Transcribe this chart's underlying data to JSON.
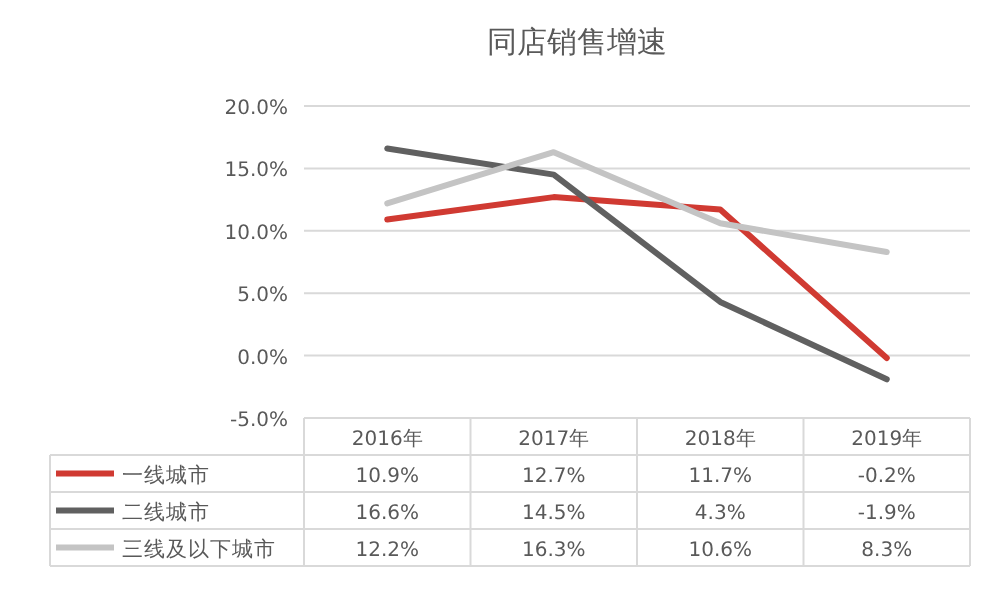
{
  "chart_data": {
    "type": "line",
    "title": "同店销售增速",
    "categories": [
      "2016年",
      "2017年",
      "2018年",
      "2019年"
    ],
    "ylim": [
      -5,
      20
    ],
    "yticks": [
      {
        "value": -5,
        "label": "-5.0%"
      },
      {
        "value": 0,
        "label": "0.0%"
      },
      {
        "value": 5,
        "label": "5.0%"
      },
      {
        "value": 10,
        "label": "10.0%"
      },
      {
        "value": 15,
        "label": "15.0%"
      },
      {
        "value": 20,
        "label": "20.0%"
      }
    ],
    "grid": "y",
    "legend": "bottom",
    "marker": "none",
    "line_style": "solid",
    "series": [
      {
        "name": "一线城市",
        "color": "#d03a32",
        "values": [
          10.9,
          12.7,
          11.7,
          -0.2
        ],
        "value_labels": [
          "10.9%",
          "12.7%",
          "11.7%",
          "-0.2%"
        ]
      },
      {
        "name": "二线城市",
        "color": "#606060",
        "values": [
          16.6,
          14.5,
          4.3,
          -1.9
        ],
        "value_labels": [
          "16.6%",
          "14.5%",
          "4.3%",
          "-1.9%"
        ]
      },
      {
        "name": "三线及以下城市",
        "color": "#c4c4c4",
        "values": [
          12.2,
          16.3,
          10.6,
          8.3
        ],
        "value_labels": [
          "12.2%",
          "16.3%",
          "10.6%",
          "8.3%"
        ]
      }
    ]
  }
}
